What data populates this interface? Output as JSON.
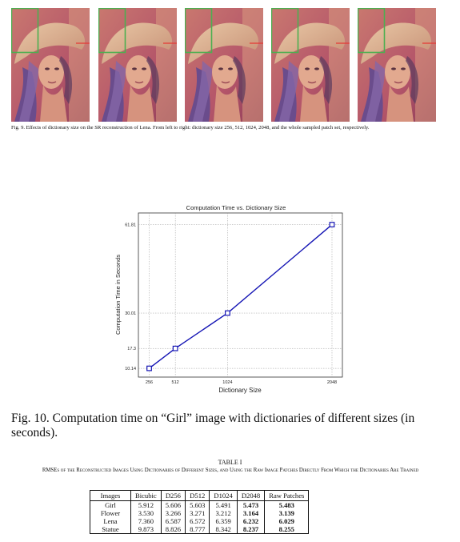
{
  "figure9": {
    "caption": "Fig. 9.   Effects of dictionary size on the SR reconstruction of Lena. From left to right: dictionary size 256, 512, 1024, 2048, and the whole sampled patch set, respectively.",
    "images": [
      {
        "subject": "lena-portrait"
      },
      {
        "subject": "lena-portrait"
      },
      {
        "subject": "lena-portrait"
      },
      {
        "subject": "lena-portrait"
      },
      {
        "subject": "lena-portrait"
      }
    ],
    "inset_border_color": "#4caf50",
    "highlight_color": "#e53935"
  },
  "chart_data": {
    "type": "line",
    "title": "Computation Time vs. Dictionary Size",
    "xlabel": "Dictionary Size",
    "ylabel": "Computation Time in Seconds",
    "x": [
      256,
      512,
      1024,
      2048
    ],
    "xticks": [
      "256",
      "512",
      "1024",
      "2048"
    ],
    "series": [
      {
        "values": [
          10.14,
          17.3,
          30.01,
          61.81
        ]
      }
    ],
    "yticks": [
      "10.14",
      "17.3",
      "30.01",
      "61.81"
    ],
    "xlim": [
      150,
      2150
    ],
    "ylim": [
      7,
      66
    ],
    "grid": true,
    "line_color": "#1414b4"
  },
  "figure10": {
    "caption": "Fig. 10.   Computation time on “Girl” image with dictionaries of different sizes (in seconds)."
  },
  "table1": {
    "title": "TABLE I",
    "caption": "RMSEs of the Reconstructed Images Using Dictionaries of Different Sizes, and Using the Raw Image Patches Directly From Which the Dictionaries Are Trained",
    "headers": [
      "Images",
      "Bicubic",
      "D256",
      "D512",
      "D1024",
      "D2048",
      "Raw Patches"
    ],
    "rows": [
      {
        "cells": [
          "Girl",
          "5.912",
          "5.606",
          "5.603",
          "5.491",
          "5.473",
          "5.483"
        ],
        "bold": [
          5,
          6
        ]
      },
      {
        "cells": [
          "Flower",
          "3.530",
          "3.266",
          "3.271",
          "3.212",
          "3.164",
          "3.139"
        ],
        "bold": [
          5,
          6
        ]
      },
      {
        "cells": [
          "Lena",
          "7.360",
          "6.587",
          "6.572",
          "6.359",
          "6.232",
          "6.029"
        ],
        "bold": [
          5,
          6
        ]
      },
      {
        "cells": [
          "Statue",
          "9.873",
          "8.826",
          "8.777",
          "8.342",
          "8.237",
          "8.255"
        ],
        "bold": [
          5,
          6
        ]
      }
    ]
  }
}
